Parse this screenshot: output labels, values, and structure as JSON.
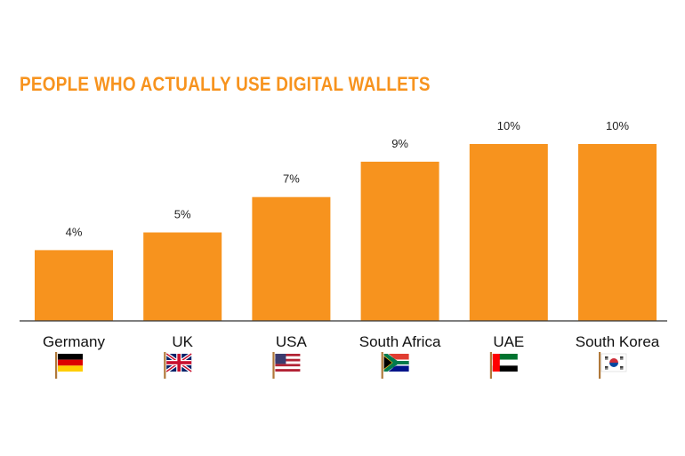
{
  "chart_data": {
    "type": "bar",
    "title": "PEOPLE WHO ACTUALLY USE DIGITAL WALLETS",
    "xlabel": "",
    "ylabel": "",
    "categories": [
      "Germany",
      "UK",
      "USA",
      "South Africa",
      "UAE",
      "South Korea"
    ],
    "values": [
      4,
      5,
      7,
      9,
      10,
      10
    ],
    "value_labels": [
      "4%",
      "5%",
      "7%",
      "9%",
      "10%",
      "10%"
    ],
    "ylim": [
      0,
      10
    ],
    "grid": false,
    "legend": "none"
  },
  "flags": [
    {
      "country": "Germany",
      "icon": "germany-flag-icon"
    },
    {
      "country": "UK",
      "icon": "uk-flag-icon"
    },
    {
      "country": "USA",
      "icon": "usa-flag-icon"
    },
    {
      "country": "South Africa",
      "icon": "south-africa-flag-icon"
    },
    {
      "country": "UAE",
      "icon": "uae-flag-icon"
    },
    {
      "country": "South Korea",
      "icon": "south-korea-flag-icon"
    }
  ],
  "colors": {
    "bar": "#F7931E",
    "title": "#F7931E",
    "axis": "#333333",
    "text": "#222222"
  }
}
